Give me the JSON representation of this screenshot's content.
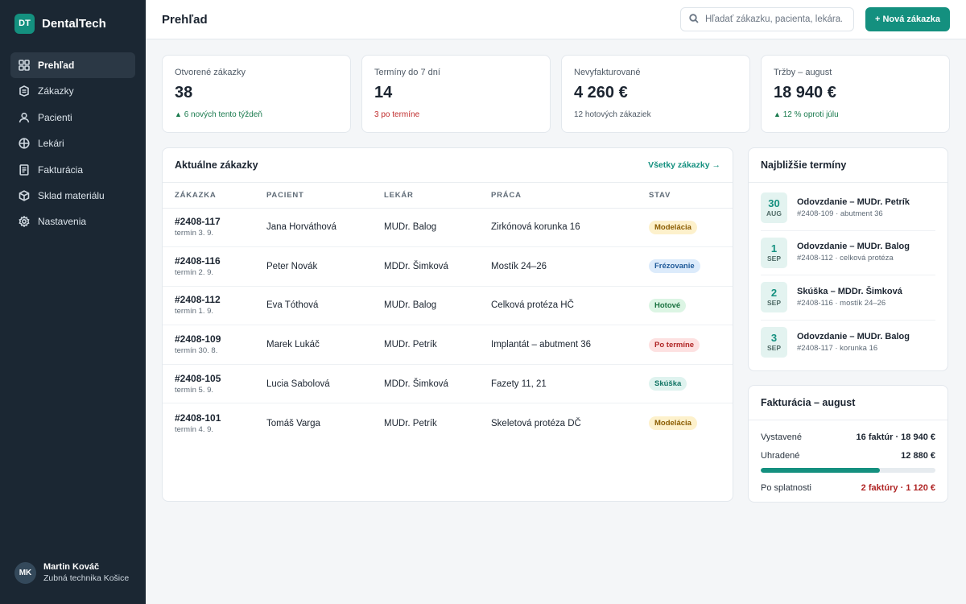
{
  "brand": {
    "logo": "DT",
    "name": "DentalTech"
  },
  "nav": [
    {
      "label": "Prehľad",
      "icon": "grid-icon",
      "active": true
    },
    {
      "label": "Zákazky",
      "icon": "package-icon"
    },
    {
      "label": "Pacienti",
      "icon": "user-icon"
    },
    {
      "label": "Lekári",
      "icon": "globe-icon"
    },
    {
      "label": "Fakturácia",
      "icon": "invoice-icon"
    },
    {
      "label": "Sklad materiálu",
      "icon": "box-icon"
    },
    {
      "label": "Nastavenia",
      "icon": "gear-icon"
    }
  ],
  "user": {
    "initials": "MK",
    "name": "Martin Kováč",
    "role": "Zubná technika Košice"
  },
  "header": {
    "title": "Prehľad",
    "search_placeholder": "Hľadať zákazku, pacienta, lekára...",
    "new_button": "+ Nová zákazka"
  },
  "stats": [
    {
      "label": "Otvorené zákazky",
      "value": "38",
      "sub": "6 nových tento týždeň",
      "trend": "up"
    },
    {
      "label": "Termíny do 7 dní",
      "value": "14",
      "sub": "3 po termíne",
      "trend": "warn"
    },
    {
      "label": "Nevyfakturované",
      "value": "4 260 €",
      "sub": "12 hotových zákaziek",
      "trend": "none"
    },
    {
      "label": "Tržby – august",
      "value": "18 940 €",
      "sub": "12 % oproti júlu",
      "trend": "up"
    }
  ],
  "orders": {
    "title": "Aktuálne zákazky",
    "link": "Všetky zákazky →",
    "columns": [
      "ZÁKAZKA",
      "PACIENT",
      "LEKÁR",
      "PRÁCA",
      "STAV"
    ],
    "rows": [
      {
        "id": "#2408-117",
        "due": "termín 3. 9.",
        "patient": "Jana Horváthová",
        "doctor": "MUDr. Balog",
        "work": "Zirkónová korunka 16",
        "status": "Modelácia",
        "status_class": "b-modelacia"
      },
      {
        "id": "#2408-116",
        "due": "termín 2. 9.",
        "patient": "Peter Novák",
        "doctor": "MDDr. Šimková",
        "work": "Mostík 24–26",
        "status": "Frézovanie",
        "status_class": "b-frezovanie"
      },
      {
        "id": "#2408-112",
        "due": "termín 1. 9.",
        "patient": "Eva Tóthová",
        "doctor": "MUDr. Balog",
        "work": "Celková protéza HČ",
        "status": "Hotové",
        "status_class": "b-hotove"
      },
      {
        "id": "#2408-109",
        "due": "termín 30. 8.",
        "patient": "Marek Lukáč",
        "doctor": "MUDr. Petrík",
        "work": "Implantát – abutment 36",
        "status": "Po termíne",
        "status_class": "b-poterm"
      },
      {
        "id": "#2408-105",
        "due": "termín 5. 9.",
        "patient": "Lucia Sabolová",
        "doctor": "MDDr. Šimková",
        "work": "Fazety 11, 21",
        "status": "Skúška",
        "status_class": "b-skuska"
      },
      {
        "id": "#2408-101",
        "due": "termín 4. 9.",
        "patient": "Tomáš Varga",
        "doctor": "MUDr. Petrík",
        "work": "Skeletová protéza DČ",
        "status": "Modelácia",
        "status_class": "b-modelacia"
      }
    ]
  },
  "terms": {
    "title": "Najbližšie termíny",
    "items": [
      {
        "day": "30",
        "month": "AUG",
        "title": "Odovzdanie – MUDr. Petrík",
        "sub": "#2408-109 · abutment 36"
      },
      {
        "day": "1",
        "month": "SEP",
        "title": "Odovzdanie – MUDr. Balog",
        "sub": "#2408-112 · celková protéza"
      },
      {
        "day": "2",
        "month": "SEP",
        "title": "Skúška – MDDr. Šimková",
        "sub": "#2408-116 · mostík 24–26"
      },
      {
        "day": "3",
        "month": "SEP",
        "title": "Odovzdanie – MUDr. Balog",
        "sub": "#2408-117 · korunka 16"
      }
    ]
  },
  "billing": {
    "title": "Fakturácia – august",
    "issued_label": "Vystavené",
    "issued_value": "16 faktúr · 18 940 €",
    "paid_label": "Uhradené",
    "paid_value": "12 880 €",
    "paid_fraction": 0.68,
    "overdue_label": "Po splatnosti",
    "overdue_value": "2 faktúry · 1 120 €"
  },
  "colors": {
    "accent": "#14907f",
    "sidebar": "#1b2733",
    "danger": "#b02525"
  }
}
